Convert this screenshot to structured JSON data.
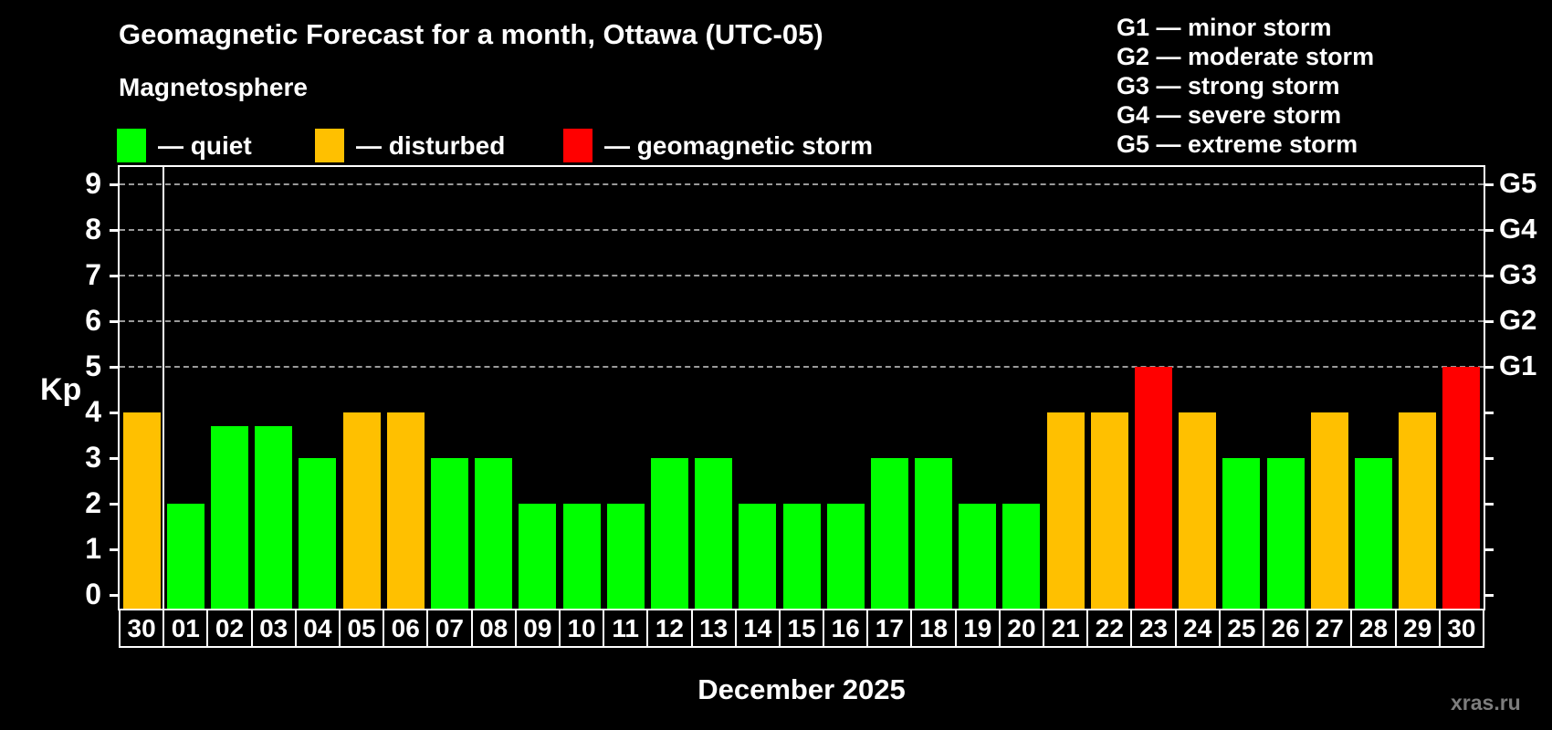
{
  "title": "Geomagnetic Forecast for a month, Ottawa (UTC-05)",
  "subtitle": "Magnetosphere",
  "legend": {
    "items": [
      {
        "label": "— quiet",
        "status": "quiet",
        "color": "#00ff00",
        "x": 128
      },
      {
        "label": "— disturbed",
        "status": "disturbed",
        "color": "#ffc000",
        "x": 345
      },
      {
        "label": "— geomagnetic storm",
        "status": "storm",
        "color": "#ff0000",
        "x": 617
      }
    ]
  },
  "g_legend": {
    "items": [
      "G1 — minor storm",
      "G2 — moderate storm",
      "G3 — strong storm",
      "G4 — severe storm",
      "G5 — extreme storm"
    ]
  },
  "watermark": "xras.ru",
  "chart_data": {
    "type": "bar",
    "title": "Geomagnetic Forecast for a month, Ottawa (UTC-05)",
    "xlabel": "December 2025",
    "ylabel": "Kp",
    "ylim": [
      -0.3,
      9.38
    ],
    "yticks": [
      0,
      1,
      2,
      3,
      4,
      5,
      6,
      7,
      8,
      9
    ],
    "gridlines_at": [
      5,
      6,
      7,
      8,
      9
    ],
    "grid": "horizontal-dashed",
    "right_axis_labels": [
      {
        "kp": 5,
        "label": "G1"
      },
      {
        "kp": 6,
        "label": "G2"
      },
      {
        "kp": 7,
        "label": "G3"
      },
      {
        "kp": 8,
        "label": "G4"
      },
      {
        "kp": 9,
        "label": "G5"
      }
    ],
    "month_separator_after_index": 0,
    "status_colors": {
      "quiet": "#00ff00",
      "disturbed": "#ffc000",
      "storm": "#ff0000"
    },
    "categories": [
      "30",
      "01",
      "02",
      "03",
      "04",
      "05",
      "06",
      "07",
      "08",
      "09",
      "10",
      "11",
      "12",
      "13",
      "14",
      "15",
      "16",
      "17",
      "18",
      "19",
      "20",
      "21",
      "22",
      "23",
      "24",
      "25",
      "26",
      "27",
      "28",
      "29",
      "30"
    ],
    "values": [
      4.0,
      2.0,
      3.7,
      3.7,
      3.0,
      4.0,
      4.0,
      3.0,
      3.0,
      2.0,
      2.0,
      2.0,
      3.0,
      3.0,
      2.0,
      2.0,
      2.0,
      3.0,
      3.0,
      2.0,
      2.0,
      4.0,
      4.0,
      5.0,
      4.0,
      3.0,
      3.0,
      4.0,
      3.0,
      4.0,
      5.0
    ],
    "statuses": [
      "disturbed",
      "quiet",
      "quiet",
      "quiet",
      "quiet",
      "disturbed",
      "disturbed",
      "quiet",
      "quiet",
      "quiet",
      "quiet",
      "quiet",
      "quiet",
      "quiet",
      "quiet",
      "quiet",
      "quiet",
      "quiet",
      "quiet",
      "quiet",
      "quiet",
      "disturbed",
      "disturbed",
      "storm",
      "disturbed",
      "quiet",
      "quiet",
      "disturbed",
      "quiet",
      "disturbed",
      "storm"
    ]
  }
}
